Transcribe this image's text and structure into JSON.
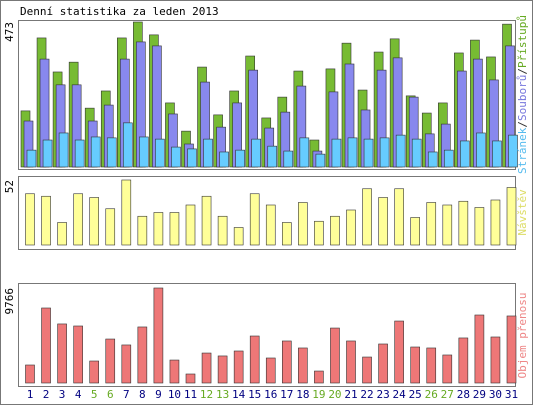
{
  "title": "Denní statistika za leden 2013",
  "chart_data": [
    {
      "type": "bar",
      "ylim": [
        0,
        473
      ],
      "yticks": [
        473
      ],
      "legend_separator": "/",
      "series": [
        {
          "name": "Přístupů",
          "color": "#77bb33",
          "label_color": "#66aa22",
          "values": [
            183,
            421,
            310,
            342,
            192,
            248,
            421,
            473,
            431,
            209,
            117,
            326,
            170,
            248,
            362,
            160,
            228,
            313,
            88,
            320,
            404,
            251,
            375,
            418,
            232,
            176,
            209,
            372,
            414,
            359,
            466
          ]
        },
        {
          "name": "Souborů",
          "color": "#8888ee",
          "label_color": "#7777dd",
          "values": [
            150,
            352,
            268,
            268,
            150,
            202,
            352,
            408,
            395,
            173,
            75,
            277,
            130,
            209,
            316,
            127,
            179,
            264,
            52,
            245,
            336,
            186,
            316,
            356,
            228,
            108,
            140,
            313,
            352,
            284,
            395
          ]
        },
        {
          "name": "Stránek",
          "color": "#66ccff",
          "label_color": "#55bbee",
          "values": [
            55,
            88,
            111,
            88,
            98,
            95,
            144,
            98,
            91,
            65,
            59,
            91,
            49,
            55,
            91,
            68,
            52,
            95,
            42,
            91,
            95,
            91,
            95,
            104,
            91,
            49,
            55,
            85,
            111,
            85,
            104
          ]
        }
      ]
    },
    {
      "type": "bar",
      "ylim": [
        0,
        52
      ],
      "yticks": [
        52
      ],
      "series": [
        {
          "name": "Návštěv",
          "color": "#ffff99",
          "label_color": "#dddd66",
          "values": [
            41,
            39,
            18,
            41,
            38,
            29,
            52,
            23,
            26,
            26,
            32,
            39,
            23,
            14,
            41,
            32,
            18,
            34,
            19,
            23,
            28,
            45,
            38,
            45,
            22,
            34,
            32,
            35,
            30,
            36,
            46
          ]
        }
      ]
    },
    {
      "type": "bar",
      "ylim": [
        0,
        9766
      ],
      "yticks": [
        9766
      ],
      "categories": [
        "1",
        "2",
        "3",
        "4",
        "5",
        "6",
        "7",
        "8",
        "9",
        "10",
        "11",
        "12",
        "13",
        "14",
        "15",
        "16",
        "17",
        "18",
        "19",
        "20",
        "21",
        "22",
        "23",
        "24",
        "25",
        "26",
        "27",
        "28",
        "29",
        "30",
        "31"
      ],
      "category_color": "#000080",
      "highlight_color": "#66aa22",
      "highlight": [
        4,
        5,
        11,
        12,
        18,
        19,
        25,
        26
      ],
      "series": [
        {
          "name": "Objem přenosu",
          "color": "#ee7777",
          "label_color": "#ee8888",
          "values": [
            1850,
            7710,
            6070,
            5860,
            2260,
            4520,
            3910,
            5760,
            9766,
            2360,
            925,
            3080,
            2780,
            3290,
            4830,
            2570,
            4320,
            3600,
            1230,
            5650,
            4320,
            2670,
            4010,
            6370,
            3700,
            3600,
            2880,
            4630,
            6990,
            4730,
            6890
          ]
        }
      ]
    }
  ]
}
